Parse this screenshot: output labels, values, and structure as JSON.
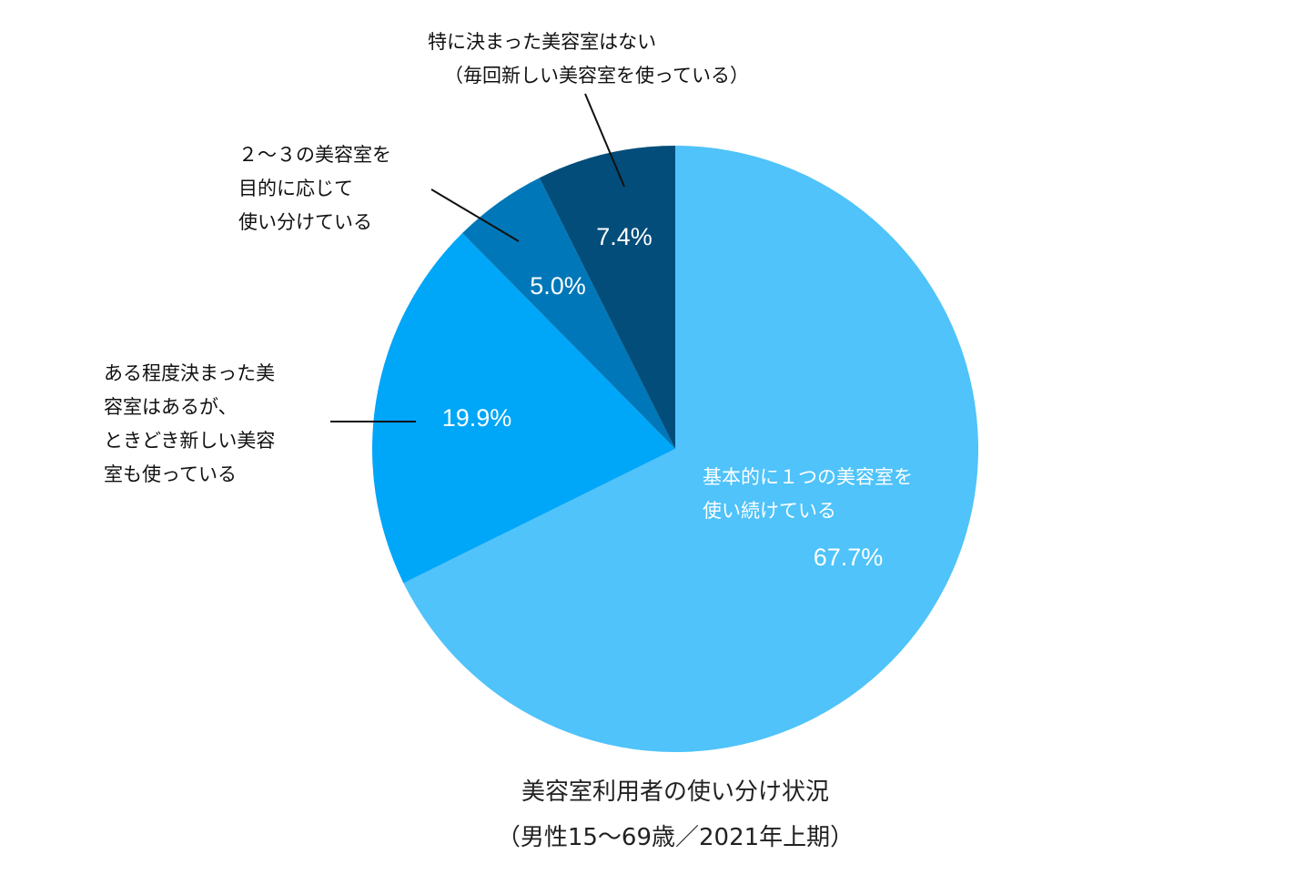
{
  "chart_data": {
    "type": "pie",
    "title": [
      "美容室利用者の使い分け状況",
      "（男性15〜69歳／2021年上期）"
    ],
    "start_angle_deg": 0,
    "direction": "clockwise",
    "slices": [
      {
        "label_lines": [
          "基本的に１つの美容室を",
          "使い続けている"
        ],
        "value": 67.7,
        "value_label": "67.7%",
        "color": "#4fc3fa",
        "label_placement": "inside"
      },
      {
        "label_lines": [
          "ある程度決まった美",
          "容室はあるが、",
          "ときどき新しい美容",
          "室も使っている"
        ],
        "value": 19.9,
        "value_label": "19.9%",
        "color": "#00a6f8",
        "label_placement": "outside-left"
      },
      {
        "label_lines": [
          "２〜３の美容室を",
          "目的に応じて",
          "使い分けている"
        ],
        "value": 5.0,
        "value_label": "5.0%",
        "color": "#0077b8",
        "label_placement": "outside-upper-left"
      },
      {
        "label_lines": [
          "特に決まった美容室はない",
          "（毎回新しい美容室を使っている）"
        ],
        "value": 7.4,
        "value_label": "7.4%",
        "color": "#024d7a",
        "label_placement": "outside-top"
      }
    ]
  }
}
